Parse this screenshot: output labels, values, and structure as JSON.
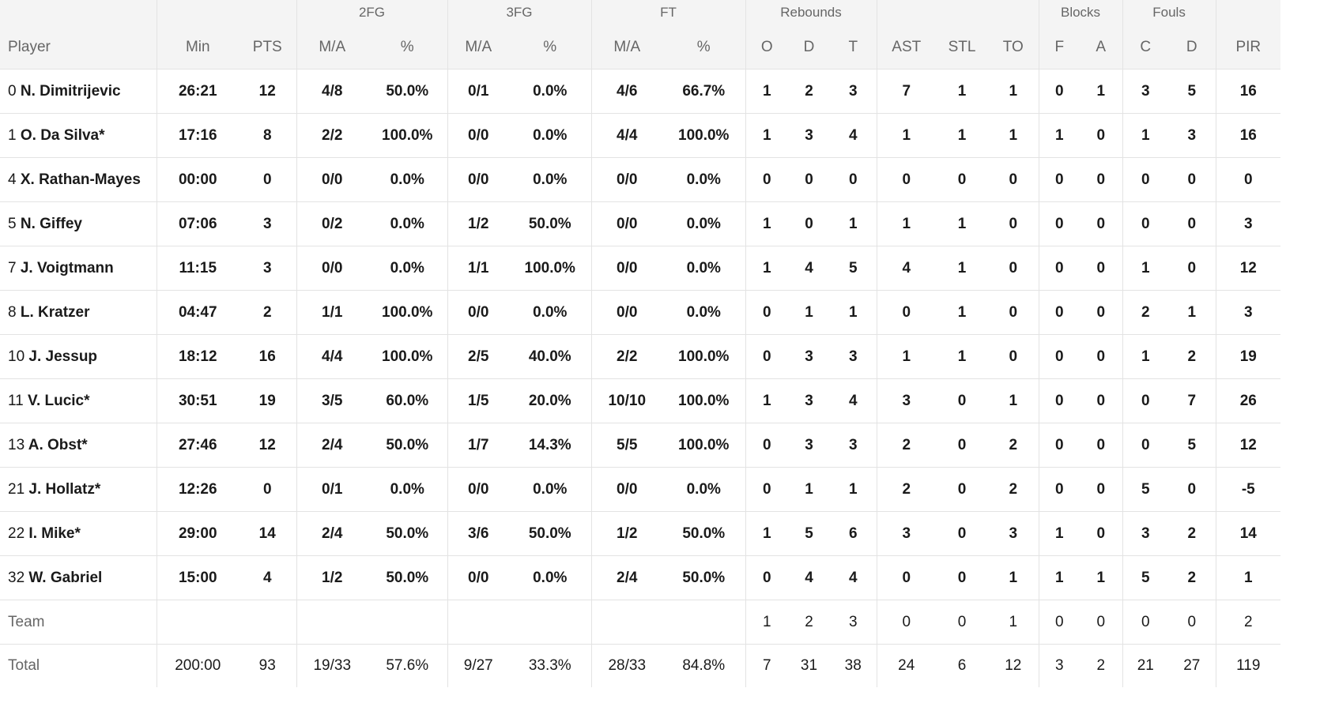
{
  "headers": {
    "groups": {
      "fg2": "2FG",
      "fg3": "3FG",
      "ft": "FT",
      "rebounds": "Rebounds",
      "blocks": "Blocks",
      "fouls": "Fouls"
    },
    "columns": {
      "player": "Player",
      "min": "Min",
      "pts": "PTS",
      "fg2_ma": "M/A",
      "fg2_pct": "%",
      "fg3_ma": "M/A",
      "fg3_pct": "%",
      "ft_ma": "M/A",
      "ft_pct": "%",
      "reb_o": "O",
      "reb_d": "D",
      "reb_t": "T",
      "ast": "AST",
      "stl": "STL",
      "to": "TO",
      "blk_f": "F",
      "blk_a": "A",
      "foul_c": "C",
      "foul_d": "D",
      "pir": "PIR"
    }
  },
  "players": [
    {
      "num": "0",
      "name": "N. Dimitrijevic",
      "min": "26:21",
      "pts": "12",
      "fg2_ma": "4/8",
      "fg2_pct": "50.0%",
      "fg3_ma": "0/1",
      "fg3_pct": "0.0%",
      "ft_ma": "4/6",
      "ft_pct": "66.7%",
      "reb_o": "1",
      "reb_d": "2",
      "reb_t": "3",
      "ast": "7",
      "stl": "1",
      "to": "1",
      "blk_f": "0",
      "blk_a": "1",
      "foul_c": "3",
      "foul_d": "5",
      "pir": "16"
    },
    {
      "num": "1",
      "name": "O. Da Silva*",
      "min": "17:16",
      "pts": "8",
      "fg2_ma": "2/2",
      "fg2_pct": "100.0%",
      "fg3_ma": "0/0",
      "fg3_pct": "0.0%",
      "ft_ma": "4/4",
      "ft_pct": "100.0%",
      "reb_o": "1",
      "reb_d": "3",
      "reb_t": "4",
      "ast": "1",
      "stl": "1",
      "to": "1",
      "blk_f": "1",
      "blk_a": "0",
      "foul_c": "1",
      "foul_d": "3",
      "pir": "16"
    },
    {
      "num": "4",
      "name": "X. Rathan-Mayes",
      "min": "00:00",
      "pts": "0",
      "fg2_ma": "0/0",
      "fg2_pct": "0.0%",
      "fg3_ma": "0/0",
      "fg3_pct": "0.0%",
      "ft_ma": "0/0",
      "ft_pct": "0.0%",
      "reb_o": "0",
      "reb_d": "0",
      "reb_t": "0",
      "ast": "0",
      "stl": "0",
      "to": "0",
      "blk_f": "0",
      "blk_a": "0",
      "foul_c": "0",
      "foul_d": "0",
      "pir": "0"
    },
    {
      "num": "5",
      "name": "N. Giffey",
      "min": "07:06",
      "pts": "3",
      "fg2_ma": "0/2",
      "fg2_pct": "0.0%",
      "fg3_ma": "1/2",
      "fg3_pct": "50.0%",
      "ft_ma": "0/0",
      "ft_pct": "0.0%",
      "reb_o": "1",
      "reb_d": "0",
      "reb_t": "1",
      "ast": "1",
      "stl": "1",
      "to": "0",
      "blk_f": "0",
      "blk_a": "0",
      "foul_c": "0",
      "foul_d": "0",
      "pir": "3"
    },
    {
      "num": "7",
      "name": "J. Voigtmann",
      "min": "11:15",
      "pts": "3",
      "fg2_ma": "0/0",
      "fg2_pct": "0.0%",
      "fg3_ma": "1/1",
      "fg3_pct": "100.0%",
      "ft_ma": "0/0",
      "ft_pct": "0.0%",
      "reb_o": "1",
      "reb_d": "4",
      "reb_t": "5",
      "ast": "4",
      "stl": "1",
      "to": "0",
      "blk_f": "0",
      "blk_a": "0",
      "foul_c": "1",
      "foul_d": "0",
      "pir": "12"
    },
    {
      "num": "8",
      "name": "L. Kratzer",
      "min": "04:47",
      "pts": "2",
      "fg2_ma": "1/1",
      "fg2_pct": "100.0%",
      "fg3_ma": "0/0",
      "fg3_pct": "0.0%",
      "ft_ma": "0/0",
      "ft_pct": "0.0%",
      "reb_o": "0",
      "reb_d": "1",
      "reb_t": "1",
      "ast": "0",
      "stl": "1",
      "to": "0",
      "blk_f": "0",
      "blk_a": "0",
      "foul_c": "2",
      "foul_d": "1",
      "pir": "3"
    },
    {
      "num": "10",
      "name": "J. Jessup",
      "min": "18:12",
      "pts": "16",
      "fg2_ma": "4/4",
      "fg2_pct": "100.0%",
      "fg3_ma": "2/5",
      "fg3_pct": "40.0%",
      "ft_ma": "2/2",
      "ft_pct": "100.0%",
      "reb_o": "0",
      "reb_d": "3",
      "reb_t": "3",
      "ast": "1",
      "stl": "1",
      "to": "0",
      "blk_f": "0",
      "blk_a": "0",
      "foul_c": "1",
      "foul_d": "2",
      "pir": "19"
    },
    {
      "num": "11",
      "name": "V. Lucic*",
      "min": "30:51",
      "pts": "19",
      "fg2_ma": "3/5",
      "fg2_pct": "60.0%",
      "fg3_ma": "1/5",
      "fg3_pct": "20.0%",
      "ft_ma": "10/10",
      "ft_pct": "100.0%",
      "reb_o": "1",
      "reb_d": "3",
      "reb_t": "4",
      "ast": "3",
      "stl": "0",
      "to": "1",
      "blk_f": "0",
      "blk_a": "0",
      "foul_c": "0",
      "foul_d": "7",
      "pir": "26"
    },
    {
      "num": "13",
      "name": "A. Obst*",
      "min": "27:46",
      "pts": "12",
      "fg2_ma": "2/4",
      "fg2_pct": "50.0%",
      "fg3_ma": "1/7",
      "fg3_pct": "14.3%",
      "ft_ma": "5/5",
      "ft_pct": "100.0%",
      "reb_o": "0",
      "reb_d": "3",
      "reb_t": "3",
      "ast": "2",
      "stl": "0",
      "to": "2",
      "blk_f": "0",
      "blk_a": "0",
      "foul_c": "0",
      "foul_d": "5",
      "pir": "12"
    },
    {
      "num": "21",
      "name": "J. Hollatz*",
      "min": "12:26",
      "pts": "0",
      "fg2_ma": "0/1",
      "fg2_pct": "0.0%",
      "fg3_ma": "0/0",
      "fg3_pct": "0.0%",
      "ft_ma": "0/0",
      "ft_pct": "0.0%",
      "reb_o": "0",
      "reb_d": "1",
      "reb_t": "1",
      "ast": "2",
      "stl": "0",
      "to": "2",
      "blk_f": "0",
      "blk_a": "0",
      "foul_c": "5",
      "foul_d": "0",
      "pir": "-5"
    },
    {
      "num": "22",
      "name": "I. Mike*",
      "min": "29:00",
      "pts": "14",
      "fg2_ma": "2/4",
      "fg2_pct": "50.0%",
      "fg3_ma": "3/6",
      "fg3_pct": "50.0%",
      "ft_ma": "1/2",
      "ft_pct": "50.0%",
      "reb_o": "1",
      "reb_d": "5",
      "reb_t": "6",
      "ast": "3",
      "stl": "0",
      "to": "3",
      "blk_f": "1",
      "blk_a": "0",
      "foul_c": "3",
      "foul_d": "2",
      "pir": "14"
    },
    {
      "num": "32",
      "name": "W. Gabriel",
      "min": "15:00",
      "pts": "4",
      "fg2_ma": "1/2",
      "fg2_pct": "50.0%",
      "fg3_ma": "0/0",
      "fg3_pct": "0.0%",
      "ft_ma": "2/4",
      "ft_pct": "50.0%",
      "reb_o": "0",
      "reb_d": "4",
      "reb_t": "4",
      "ast": "0",
      "stl": "0",
      "to": "1",
      "blk_f": "1",
      "blk_a": "1",
      "foul_c": "5",
      "foul_d": "2",
      "pir": "1"
    }
  ],
  "team": {
    "label": "Team",
    "reb_o": "1",
    "reb_d": "2",
    "reb_t": "3",
    "ast": "0",
    "stl": "0",
    "to": "1",
    "blk_f": "0",
    "blk_a": "0",
    "foul_c": "0",
    "foul_d": "0",
    "pir": "2"
  },
  "total": {
    "label": "Total",
    "min": "200:00",
    "pts": "93",
    "fg2_ma": "19/33",
    "fg2_pct": "57.6%",
    "fg3_ma": "9/27",
    "fg3_pct": "33.3%",
    "ft_ma": "28/33",
    "ft_pct": "84.8%",
    "reb_o": "7",
    "reb_d": "31",
    "reb_t": "38",
    "ast": "24",
    "stl": "6",
    "to": "12",
    "blk_f": "3",
    "blk_a": "2",
    "foul_c": "21",
    "foul_d": "27",
    "pir": "119"
  }
}
